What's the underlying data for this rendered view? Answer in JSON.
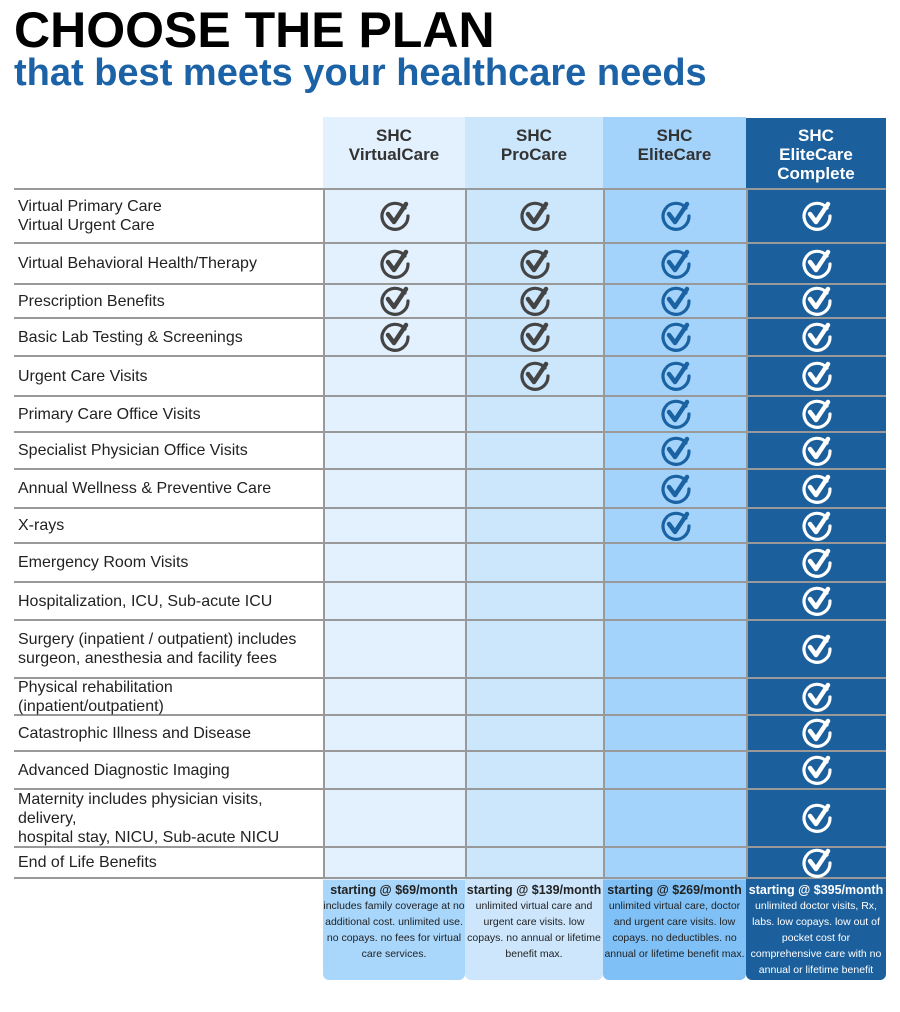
{
  "title": "CHOOSE THE PLAN",
  "subtitle": "that best meets your healthcare needs",
  "plans": [
    {
      "line1": "SHC",
      "line2": "VirtualCare",
      "line3": "",
      "price": "starting @ $69/month",
      "desc": "includes family coverage at no additional cost. unlimited use. no copays. no fees for virtual care services."
    },
    {
      "line1": "SHC",
      "line2": "ProCare",
      "line3": "",
      "price": "starting @ $139/month",
      "desc": "unlimited virtual care and urgent care visits. low copays. no annual or lifetime benefit max."
    },
    {
      "line1": "SHC",
      "line2": "EliteCare",
      "line3": "",
      "price": "starting @ $269/month",
      "desc": "unlimited virtual care, doctor and urgent care visits. low copays. no deductibles. no annual or lifetime benefit max."
    },
    {
      "line1": "SHC",
      "line2": "EliteCare",
      "line3": "Complete",
      "price": "starting @ $395/month",
      "desc": "unlimited doctor visits, Rx, labs. low copays. low out of pocket cost for comprehensive care with no annual or lifetime benefit max."
    }
  ],
  "colors": {
    "c1": "#e3f0fd",
    "c2": "#cce6fc",
    "c3": "#a3d3fa",
    "c4": "#1b5f9c",
    "check_gray": "#444444",
    "check_blue": "#1b62a3",
    "check_white": "#ffffff"
  },
  "features": [
    {
      "label": "Virtual Primary Care\nVirtual Urgent Care",
      "checks": [
        true,
        true,
        true,
        true
      ]
    },
    {
      "label": "Virtual Behavioral Health/Therapy",
      "checks": [
        true,
        true,
        true,
        true
      ]
    },
    {
      "label": "Prescription Benefits",
      "checks": [
        true,
        true,
        true,
        true
      ]
    },
    {
      "label": "Basic Lab Testing & Screenings",
      "checks": [
        true,
        true,
        true,
        true
      ]
    },
    {
      "label": "Urgent Care Visits",
      "checks": [
        false,
        true,
        true,
        true
      ]
    },
    {
      "label": "Primary Care Office Visits",
      "checks": [
        false,
        false,
        true,
        true
      ]
    },
    {
      "label": "Specialist Physician Office Visits",
      "checks": [
        false,
        false,
        true,
        true
      ]
    },
    {
      "label": "Annual Wellness & Preventive Care",
      "checks": [
        false,
        false,
        true,
        true
      ]
    },
    {
      "label": "X-rays",
      "checks": [
        false,
        false,
        true,
        true
      ]
    },
    {
      "label": "Emergency Room Visits",
      "checks": [
        false,
        false,
        false,
        true
      ]
    },
    {
      "label": "Hospitalization, ICU, Sub-acute ICU",
      "checks": [
        false,
        false,
        false,
        true
      ]
    },
    {
      "label": "Surgery (inpatient / outpatient) includes\nsurgeon, anesthesia and facility fees",
      "checks": [
        false,
        false,
        false,
        true
      ]
    },
    {
      "label": "Physical rehabilitation (inpatient/outpatient)",
      "checks": [
        false,
        false,
        false,
        true
      ]
    },
    {
      "label": "Catastrophic Illness and Disease",
      "checks": [
        false,
        false,
        false,
        true
      ]
    },
    {
      "label": "Advanced Diagnostic Imaging",
      "checks": [
        false,
        false,
        false,
        true
      ]
    },
    {
      "label": "Maternity includes physician visits, delivery,\nhospital stay, NICU, Sub-acute NICU",
      "checks": [
        false,
        false,
        false,
        true
      ]
    },
    {
      "label": "End of Life Benefits",
      "checks": [
        false,
        false,
        false,
        true
      ]
    }
  ]
}
